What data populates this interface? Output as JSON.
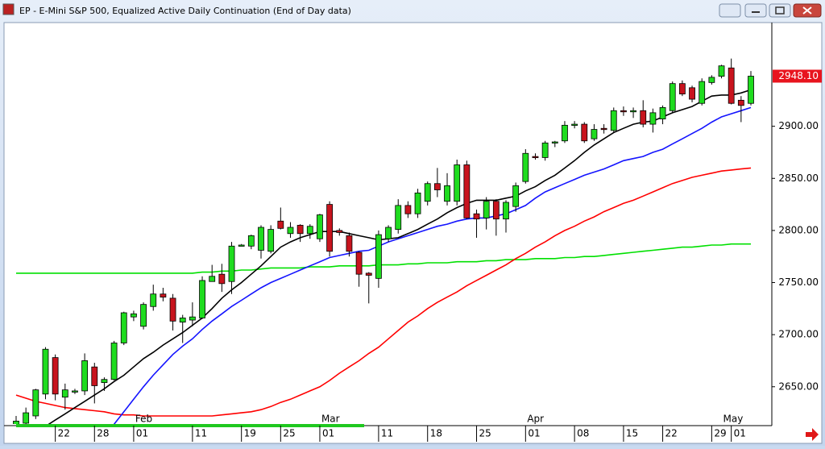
{
  "window_title": "EP - E-Mini S&P 500, Equalized Active Daily Continuation (End of Day data)",
  "chart_data": {
    "type": "candlestick",
    "ylim": [
      2615,
      2998
    ],
    "yticks": [
      {
        "value": 2650,
        "label": "2650.00"
      },
      {
        "value": 2700,
        "label": "2700.00"
      },
      {
        "value": 2750,
        "label": "2750.00"
      },
      {
        "value": 2800,
        "label": "2800.00"
      },
      {
        "value": 2850,
        "label": "2850.00"
      },
      {
        "value": 2900,
        "label": "2900.00"
      }
    ],
    "categories": [
      null,
      null,
      null,
      null,
      "22",
      null,
      null,
      null,
      "28",
      null,
      null,
      null,
      "01",
      null,
      null,
      null,
      null,
      null,
      "11",
      null,
      null,
      null,
      null,
      "19",
      null,
      null,
      null,
      "25",
      null,
      null,
      null,
      "01",
      null,
      null,
      null,
      null,
      null,
      "11",
      null,
      null,
      null,
      null,
      "18",
      null,
      null,
      null,
      null,
      "25",
      null,
      null,
      null,
      null,
      "01",
      null,
      null,
      null,
      null,
      "08",
      null,
      null,
      null,
      null,
      "15",
      null,
      null,
      null,
      "22",
      null,
      null,
      null,
      null,
      "29",
      null,
      "01",
      null,
      null
    ],
    "months": [
      null,
      null,
      null,
      null,
      null,
      null,
      null,
      null,
      null,
      null,
      null,
      null,
      "Feb",
      null,
      null,
      null,
      null,
      null,
      null,
      null,
      null,
      null,
      null,
      null,
      null,
      null,
      null,
      null,
      null,
      null,
      null,
      "Mar",
      null,
      null,
      null,
      null,
      null,
      null,
      null,
      null,
      null,
      null,
      null,
      null,
      null,
      null,
      null,
      null,
      null,
      null,
      null,
      null,
      "Apr",
      null,
      null,
      null,
      null,
      null,
      null,
      null,
      null,
      null,
      null,
      null,
      null,
      null,
      null,
      null,
      null,
      null,
      null,
      null,
      "May",
      null,
      null
    ],
    "up_color": "#1fdc1f",
    "down_color": "#c8141e",
    "open": [
      2611,
      2615,
      2622,
      2643,
      2678,
      2640,
      2645,
      2646,
      2669,
      2654,
      2657,
      2692,
      2717,
      2708,
      2727,
      2739,
      2735,
      2712,
      2714,
      2716,
      2751,
      2758,
      2751,
      2786,
      2785,
      2781,
      2780,
      2809,
      2797,
      2805,
      2797,
      2792,
      2825,
      2800,
      2795,
      2779,
      2759,
      2754,
      2792,
      2801,
      2824,
      2816,
      2828,
      2845,
      2828,
      2828,
      2863,
      2816,
      2812,
      2828,
      2811,
      2823,
      2847,
      2871,
      2870,
      2884,
      2886,
      2901,
      2902,
      2888,
      2898,
      2896,
      2915,
      2914,
      2915,
      2902,
      2907,
      2915,
      2941,
      2937,
      2922,
      2942,
      2948,
      2956,
      2925,
      2922
    ],
    "high": [
      2622,
      2630,
      2648,
      2688,
      2681,
      2653,
      2648,
      2682,
      2673,
      2659,
      2694,
      2722,
      2723,
      2731,
      2748,
      2745,
      2739,
      2719,
      2731,
      2756,
      2767,
      2768,
      2789,
      2787,
      2796,
      2805,
      2805,
      2822,
      2808,
      2806,
      2806,
      2816,
      2828,
      2802,
      2798,
      2780,
      2760,
      2800,
      2805,
      2830,
      2828,
      2840,
      2847,
      2860,
      2855,
      2868,
      2867,
      2820,
      2832,
      2830,
      2829,
      2846,
      2878,
      2874,
      2886,
      2886,
      2905,
      2905,
      2904,
      2902,
      2902,
      2918,
      2919,
      2918,
      2925,
      2917,
      2920,
      2943,
      2944,
      2939,
      2946,
      2949,
      2959,
      2965,
      2929,
      2953
    ],
    "low": [
      2605,
      2612,
      2619,
      2638,
      2637,
      2628,
      2643,
      2642,
      2634,
      2646,
      2656,
      2690,
      2713,
      2705,
      2723,
      2732,
      2704,
      2692,
      2708,
      2715,
      2751,
      2741,
      2739,
      2785,
      2782,
      2773,
      2778,
      2801,
      2793,
      2789,
      2792,
      2789,
      2775,
      2795,
      2775,
      2746,
      2730,
      2745,
      2789,
      2797,
      2812,
      2812,
      2824,
      2832,
      2824,
      2824,
      2811,
      2793,
      2801,
      2795,
      2798,
      2818,
      2845,
      2868,
      2867,
      2880,
      2884,
      2898,
      2884,
      2886,
      2893,
      2894,
      2910,
      2908,
      2899,
      2894,
      2902,
      2913,
      2929,
      2923,
      2920,
      2940,
      2946,
      2921,
      2904,
      2920
    ],
    "close": [
      2617,
      2625,
      2647,
      2686,
      2643,
      2647,
      2646,
      2675,
      2651,
      2657,
      2692,
      2721,
      2720,
      2729,
      2739,
      2736,
      2713,
      2716,
      2717,
      2752,
      2756,
      2749,
      2785,
      2786,
      2795,
      2803,
      2801,
      2802,
      2803,
      2797,
      2804,
      2815,
      2780,
      2798,
      2780,
      2758,
      2757,
      2796,
      2803,
      2824,
      2816,
      2836,
      2845,
      2839,
      2843,
      2863,
      2812,
      2811,
      2828,
      2811,
      2827,
      2843,
      2874,
      2870,
      2884,
      2885,
      2901,
      2902,
      2886,
      2897,
      2897,
      2915,
      2914,
      2915,
      2902,
      2913,
      2918,
      2941,
      2931,
      2926,
      2943,
      2947,
      2958,
      2922,
      2920,
      2948.1
    ],
    "value_labels": [
      null,
      null,
      null,
      null,
      null,
      null,
      null,
      null,
      null,
      null,
      null,
      null,
      null,
      null,
      null,
      null,
      null,
      null,
      null,
      null,
      null,
      null,
      null,
      null,
      null,
      null,
      null,
      null,
      null,
      null,
      null,
      null,
      null,
      null,
      null,
      null,
      null,
      null,
      null,
      null,
      null,
      null,
      null,
      null,
      null,
      null,
      null,
      null,
      null,
      null,
      null,
      null,
      null,
      null,
      null,
      null,
      null,
      null,
      null,
      null,
      null,
      null,
      null,
      null,
      null,
      null,
      null,
      null,
      null,
      null,
      null,
      null,
      null,
      null,
      null,
      "2948.10"
    ],
    "label_color": "#e8141e",
    "series": [
      {
        "color": "#00e000",
        "values": [
          2759,
          2759,
          2759,
          2759,
          2759,
          2759,
          2759,
          2759,
          2759,
          2759,
          2759,
          2759,
          2759,
          2759,
          2759,
          2759,
          2759,
          2759,
          2759,
          2760,
          2760,
          2761,
          2761,
          2762,
          2762,
          2763,
          2764,
          2764,
          2764,
          2764,
          2765,
          2765,
          2765,
          2766,
          2766,
          2766,
          2766,
          2767,
          2767,
          2767,
          2768,
          2768,
          2769,
          2769,
          2769,
          2770,
          2770,
          2770,
          2771,
          2771,
          2772,
          2772,
          2772,
          2773,
          2773,
          2773,
          2774,
          2774,
          2775,
          2775,
          2776,
          2777,
          2778,
          2779,
          2780,
          2781,
          2782,
          2783,
          2784,
          2784,
          2785,
          2786,
          2786,
          2787,
          2787,
          2787
        ]
      },
      {
        "color": "#ff0000",
        "values": [
          2642,
          2639,
          2636,
          2634,
          2632,
          2630,
          2629,
          2628,
          2627,
          2626,
          2624,
          2623,
          2623,
          2622,
          2622,
          2622,
          2622,
          2622,
          2622,
          2622,
          2622,
          2623,
          2624,
          2625,
          2626,
          2628,
          2631,
          2635,
          2638,
          2642,
          2646,
          2650,
          2656,
          2663,
          2669,
          2675,
          2682,
          2688,
          2696,
          2704,
          2712,
          2718,
          2725,
          2731,
          2736,
          2741,
          2747,
          2752,
          2757,
          2762,
          2767,
          2773,
          2778,
          2784,
          2789,
          2795,
          2800,
          2804,
          2809,
          2813,
          2818,
          2822,
          2826,
          2829,
          2833,
          2837,
          2841,
          2845,
          2848,
          2851,
          2853,
          2855,
          2857,
          2858,
          2859,
          2860
        ]
      },
      {
        "color": "#1414ff",
        "values": [
          null,
          null,
          null,
          null,
          null,
          null,
          null,
          null,
          null,
          null,
          2614,
          2626,
          2638,
          2650,
          2661,
          2671,
          2681,
          2689,
          2696,
          2705,
          2713,
          2720,
          2727,
          2733,
          2739,
          2745,
          2750,
          2754,
          2758,
          2762,
          2766,
          2770,
          2774,
          2776,
          2778,
          2780,
          2781,
          2785,
          2789,
          2792,
          2795,
          2798,
          2801,
          2804,
          2806,
          2809,
          2811,
          2812,
          2812,
          2814,
          2816,
          2820,
          2824,
          2831,
          2837,
          2841,
          2845,
          2849,
          2853,
          2856,
          2859,
          2863,
          2867,
          2869,
          2871,
          2875,
          2878,
          2883,
          2888,
          2893,
          2898,
          2904,
          2909,
          2912,
          2915,
          2918
        ]
      },
      {
        "color": "#000000",
        "values": [
          null,
          null,
          null,
          2612,
          2618,
          2624,
          2630,
          2636,
          2642,
          2648,
          2655,
          2661,
          2669,
          2677,
          2683,
          2690,
          2696,
          2702,
          2709,
          2716,
          2725,
          2735,
          2743,
          2750,
          2758,
          2766,
          2775,
          2784,
          2789,
          2793,
          2796,
          2799,
          2799,
          2799,
          2797,
          2795,
          2793,
          2791,
          2792,
          2793,
          2797,
          2801,
          2806,
          2811,
          2817,
          2822,
          2826,
          2829,
          2829,
          2829,
          2831,
          2833,
          2838,
          2842,
          2848,
          2853,
          2860,
          2867,
          2875,
          2882,
          2888,
          2894,
          2898,
          2902,
          2904,
          2905,
          2909,
          2913,
          2916,
          2919,
          2924,
          2929,
          2930,
          2930,
          2932,
          2935
        ]
      }
    ]
  }
}
